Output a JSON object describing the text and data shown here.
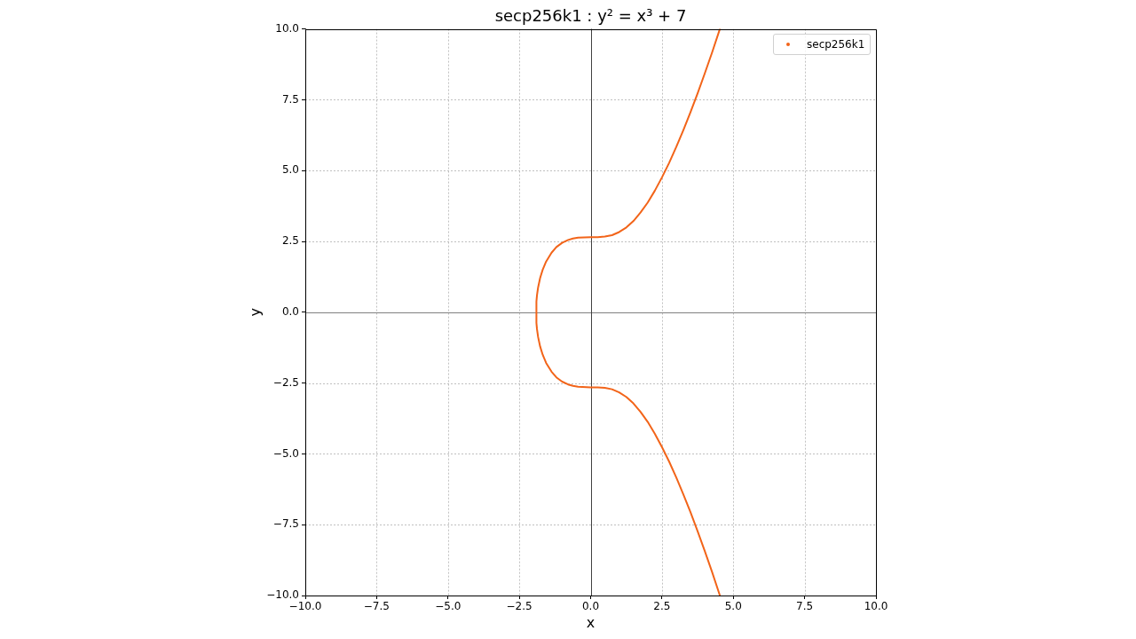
{
  "chart_data": {
    "type": "line",
    "title": "secp256k1 : y² = x³ + 7",
    "xlabel": "x",
    "ylabel": "y",
    "series": [
      {
        "name": "secp256k1",
        "color": "#f26419",
        "x": [
          4.53,
          4.25,
          4.0,
          3.75,
          3.5,
          3.25,
          3.0,
          2.75,
          2.5,
          2.25,
          2.0,
          1.75,
          1.5,
          1.25,
          1.0,
          0.75,
          0.5,
          0.25,
          0,
          -0.44,
          -0.62,
          -0.79,
          -1.0,
          -1.2,
          -1.37,
          -1.56,
          -1.68,
          -1.77,
          -1.84,
          -1.88,
          -1.9,
          -1.9,
          -1.88,
          -1.84,
          -1.77,
          -1.68,
          -1.56,
          -1.37,
          -1.2,
          -1.0,
          -0.79,
          -0.62,
          -0.44,
          0,
          0.25,
          0.5,
          0.75,
          1.0,
          1.25,
          1.5,
          1.75,
          2.0,
          2.25,
          2.5,
          2.75,
          3.0,
          3.25,
          3.5,
          3.75,
          4.0,
          4.25,
          4.53
        ],
        "values": [
          10,
          9.15,
          8.43,
          7.73,
          7.06,
          6.43,
          5.83,
          5.27,
          4.76,
          4.29,
          3.87,
          3.52,
          3.22,
          2.99,
          2.83,
          2.72,
          2.67,
          2.65,
          2.65,
          2.63,
          2.6,
          2.55,
          2.45,
          2.3,
          2.1,
          1.79,
          1.5,
          1.21,
          0.88,
          0.6,
          0.38,
          -0.38,
          -0.6,
          -0.88,
          -1.21,
          -1.5,
          -1.79,
          -2.1,
          -2.3,
          -2.45,
          -2.55,
          -2.6,
          -2.63,
          -2.65,
          -2.65,
          -2.67,
          -2.72,
          -2.83,
          -2.99,
          -3.22,
          -3.52,
          -3.87,
          -4.29,
          -4.76,
          -5.27,
          -5.83,
          -6.43,
          -7.06,
          -7.73,
          -8.43,
          -9.15,
          -10
        ]
      }
    ],
    "xlim": [
      -10,
      10
    ],
    "ylim": [
      -10,
      10
    ],
    "xticks": [
      {
        "value": -10,
        "label": "−10.0"
      },
      {
        "value": -7.5,
        "label": "−7.5"
      },
      {
        "value": -5,
        "label": "−5.0"
      },
      {
        "value": -2.5,
        "label": "−2.5"
      },
      {
        "value": 0,
        "label": "0.0"
      },
      {
        "value": 2.5,
        "label": "2.5"
      },
      {
        "value": 5,
        "label": "5.0"
      },
      {
        "value": 7.5,
        "label": "7.5"
      },
      {
        "value": 10,
        "label": "10.0"
      }
    ],
    "yticks": [
      {
        "value": -10,
        "label": "−10.0"
      },
      {
        "value": -7.5,
        "label": "−7.5"
      },
      {
        "value": -5,
        "label": "−5.0"
      },
      {
        "value": -2.5,
        "label": "−2.5"
      },
      {
        "value": 0,
        "label": "0.0"
      },
      {
        "value": 2.5,
        "label": "2.5"
      },
      {
        "value": 5,
        "label": "5.0"
      },
      {
        "value": 7.5,
        "label": "7.5"
      },
      {
        "value": 10,
        "label": "10.0"
      }
    ],
    "grid": true,
    "legend": "top right",
    "ref_lines": [
      {
        "axis": "y",
        "value": 0,
        "color": "#808080"
      },
      {
        "axis": "x",
        "value": 0,
        "color": "#404040"
      }
    ]
  }
}
